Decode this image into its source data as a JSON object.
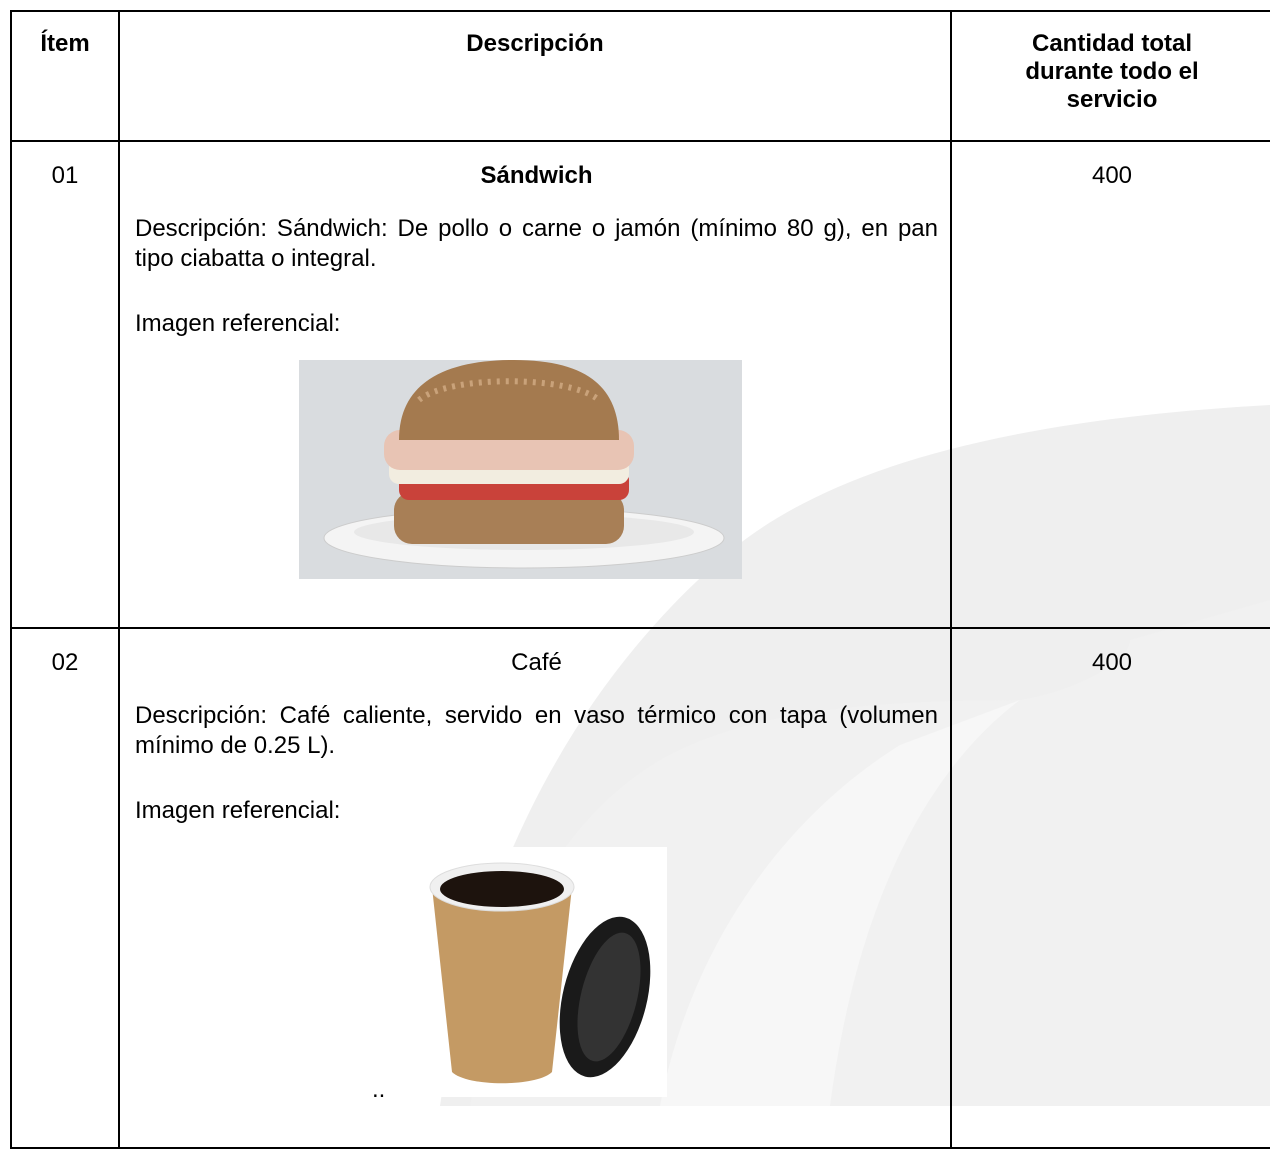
{
  "table": {
    "header": [
      "Ítem",
      "Descripción",
      "Cantidad total durante todo el servicio"
    ],
    "rows": [
      {
        "item": "01",
        "name": "Sándwich",
        "description": "Descripción: Sándwich: De pollo o carne o jamón (mínimo 80 g), en pan tipo ciabatta o integral.",
        "image_caption": "Imagen referencial:",
        "quantity": 400
      },
      {
        "item": "02",
        "name": "Café",
        "description": "Descripción: Café caliente, servido en vaso térmico con tapa (volumen mínimo de 0.25 L).",
        "image_caption": "Imagen referencial:",
        "quantity": 400,
        "trailing_text": ".."
      }
    ]
  }
}
